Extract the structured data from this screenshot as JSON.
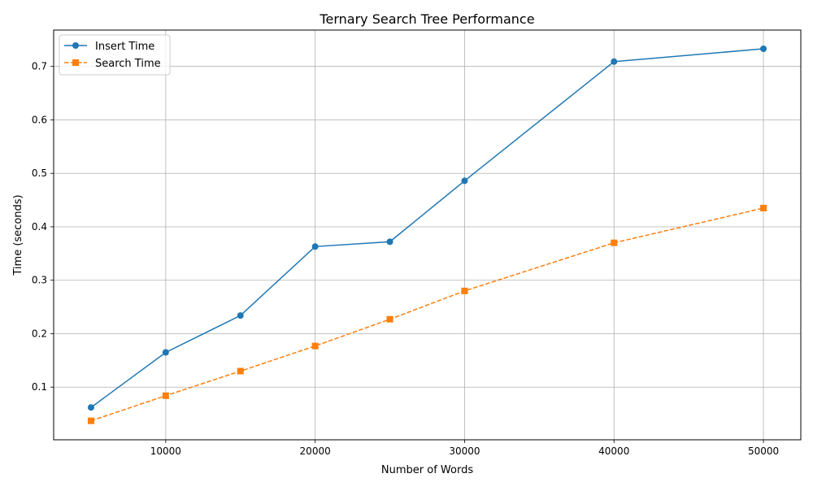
{
  "chart_data": {
    "type": "line",
    "title": "Ternary Search Tree Performance",
    "xlabel": "Number of Words",
    "ylabel": "Time (seconds)",
    "x": [
      5000,
      10000,
      15000,
      20000,
      25000,
      30000,
      40000,
      50000
    ],
    "xlim": [
      2500,
      52500
    ],
    "ylim": [
      0.0015,
      0.768
    ],
    "xticks": [
      10000,
      20000,
      30000,
      40000,
      50000
    ],
    "yticks": [
      0.1,
      0.2,
      0.3,
      0.4,
      0.5,
      0.6,
      0.7
    ],
    "grid": true,
    "legend_position": "top-left",
    "series": [
      {
        "name": "Insert Time",
        "color": "#1f77b4",
        "marker": "circle",
        "linestyle": "solid",
        "values": [
          0.062,
          0.165,
          0.234,
          0.363,
          0.372,
          0.486,
          0.709,
          0.733
        ]
      },
      {
        "name": "Search Time",
        "color": "#ff7f0e",
        "marker": "square",
        "linestyle": "dashed",
        "values": [
          0.037,
          0.084,
          0.13,
          0.177,
          0.227,
          0.28,
          0.37,
          0.435
        ]
      }
    ]
  }
}
